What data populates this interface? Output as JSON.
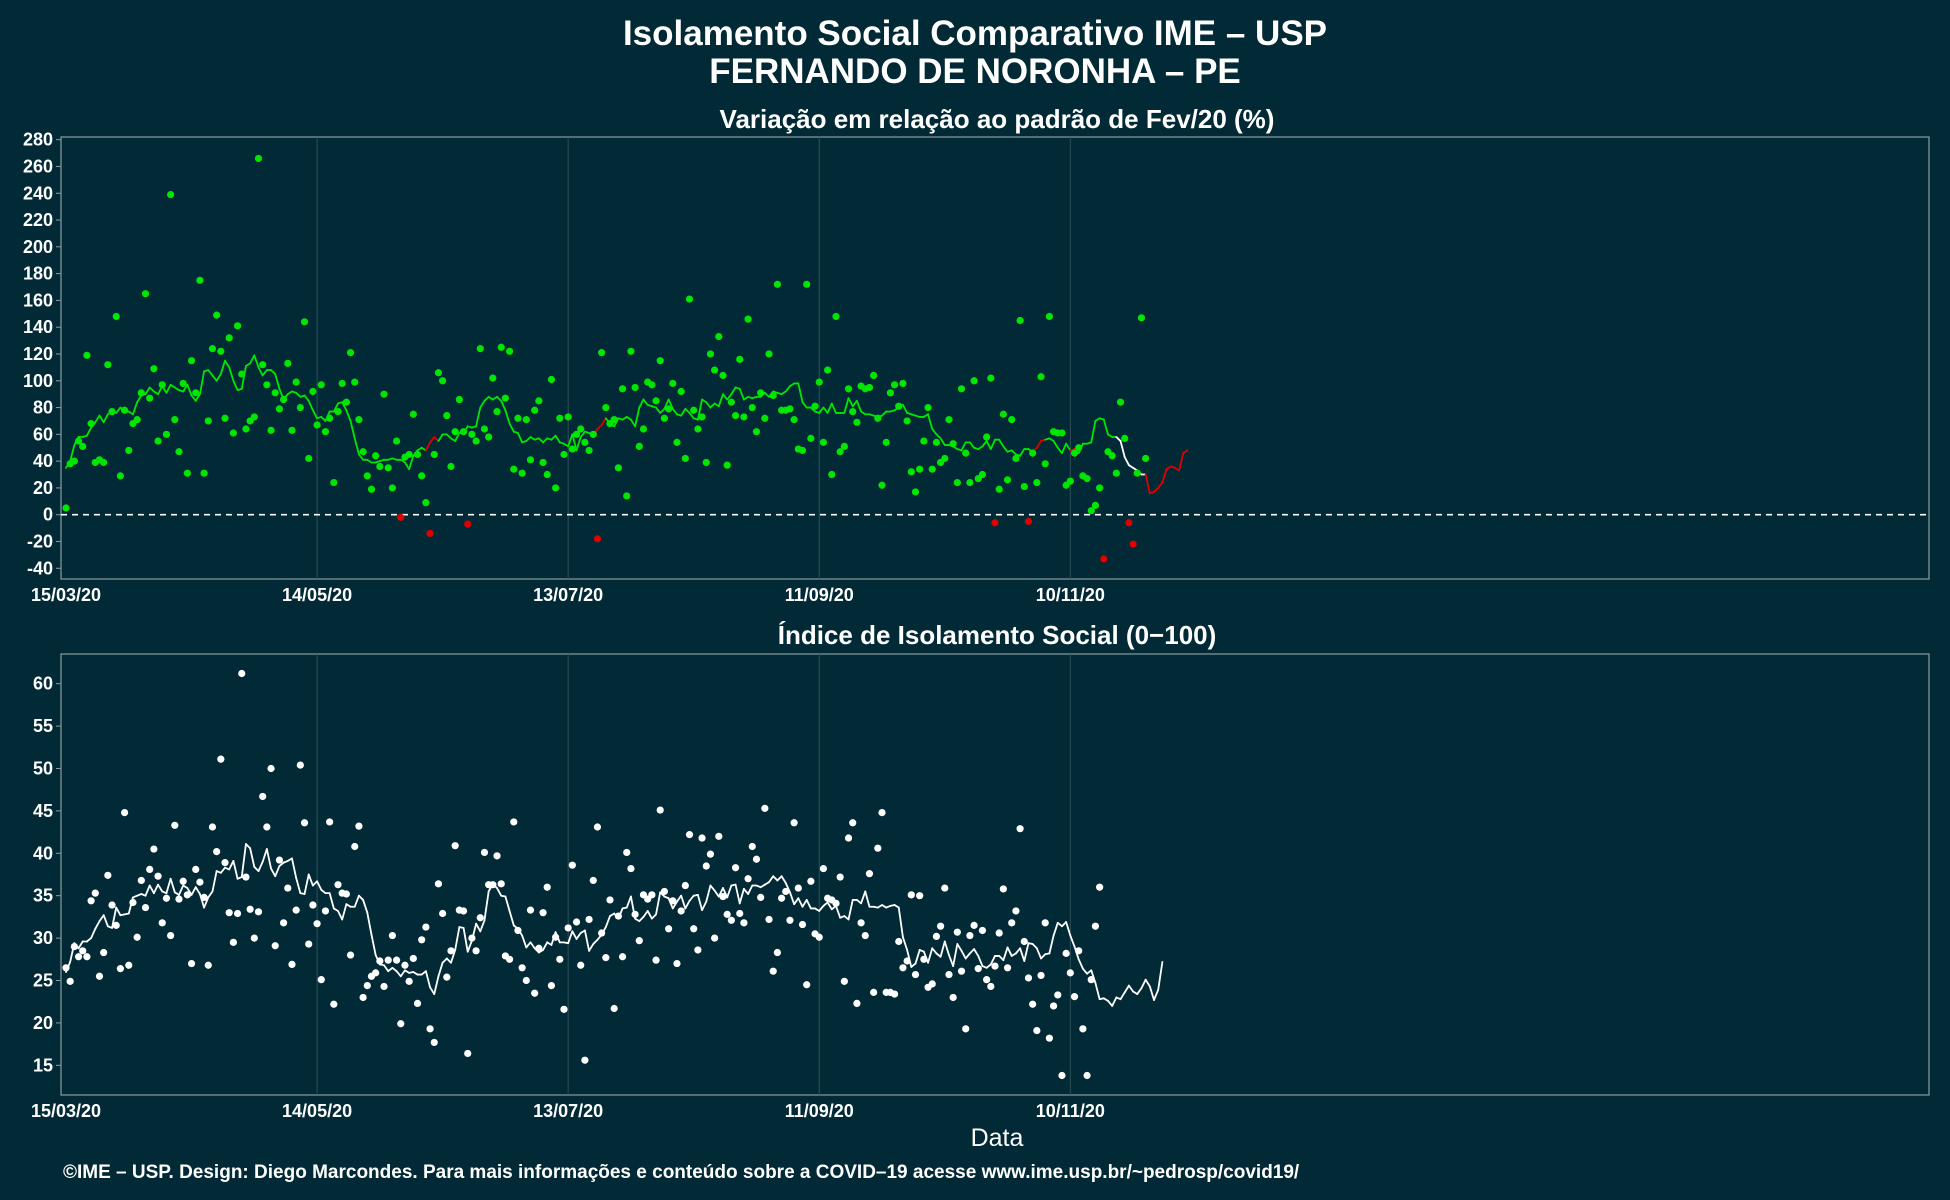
{
  "title_line1": "Isolamento Social Comparativo IME – USP",
  "title_line2": "FERNANDO DE NORONHA – PE",
  "footer": "©IME – USP. Design: Diego Marcondes. Para mais informações e conteúdo sobre a COVID–19 acesse www.ime.usp.br/~pedrosp/covid19/",
  "colors": {
    "background": "#022a36",
    "positive": "#00e600",
    "negative": "#e00000",
    "index": "#ffffff"
  },
  "chart_data": [
    {
      "type": "scatter",
      "title": "Variação em relação ao padrão de Fev/20 (%)",
      "xlabel": "",
      "ylabel": "",
      "x_start": "15/03/20",
      "x_tick_labels": [
        "15/03/20",
        "14/05/20",
        "13/07/20",
        "11/09/20",
        "10/11/20"
      ],
      "y_ticks": [
        280,
        260,
        240,
        220,
        200,
        180,
        160,
        140,
        120,
        100,
        80,
        60,
        40,
        20,
        0,
        -20,
        -40
      ],
      "ylim": [
        -48,
        282
      ],
      "reference_line": 0,
      "grid": true,
      "series": [
        {
          "type": "scatter",
          "values": [
            5,
            38,
            40,
            55,
            51,
            119,
            68,
            39,
            41,
            39,
            112,
            77,
            148,
            29,
            78,
            48,
            68,
            71,
            91,
            165,
            87,
            109,
            55,
            97,
            60,
            239,
            71,
            47,
            98,
            31,
            115,
            91,
            175,
            31,
            70,
            124,
            149,
            122,
            72,
            132,
            61,
            141,
            105,
            64,
            70,
            73,
            266,
            112,
            97,
            63,
            91,
            79,
            86,
            113,
            63,
            99,
            80,
            144,
            42,
            92,
            67,
            97,
            62,
            72,
            24,
            77,
            98,
            84,
            121,
            99,
            71,
            47,
            29,
            19,
            44,
            36,
            90,
            35,
            20,
            55,
            -2,
            43,
            45,
            75,
            45,
            29,
            9,
            -14,
            45,
            106,
            100,
            74,
            36,
            62,
            86,
            62,
            -7,
            60,
            55,
            124,
            64,
            58,
            102,
            77,
            125,
            87,
            122,
            34,
            72,
            31,
            71,
            41,
            78,
            85,
            39,
            30,
            101,
            20,
            72,
            45,
            73,
            49,
            60,
            64,
            54,
            48,
            60,
            -18,
            121,
            80,
            68,
            71,
            35,
            94,
            14,
            122,
            95,
            51,
            64,
            99,
            97,
            85,
            115,
            72,
            79,
            98,
            54,
            92,
            42,
            161,
            78,
            64,
            73,
            39,
            120,
            108,
            133,
            104,
            37,
            84,
            74,
            116,
            73,
            146,
            80,
            62,
            91,
            72,
            120,
            89,
            172,
            78,
            78,
            79,
            71,
            49,
            48,
            172,
            57,
            81,
            99,
            54,
            108,
            30,
            148,
            47,
            51,
            94,
            77,
            69,
            96,
            94,
            95,
            104,
            72,
            22,
            54,
            91,
            97,
            81,
            98,
            70,
            32,
            17,
            34,
            55,
            80,
            34,
            54,
            39,
            42,
            71,
            53,
            24,
            94,
            46,
            24,
            100,
            27,
            30,
            58,
            102,
            -6,
            19,
            75,
            26,
            71,
            42,
            145,
            21,
            -5,
            46,
            24,
            103,
            38,
            148,
            62,
            61,
            61,
            22,
            25,
            46,
            50,
            29,
            27,
            3,
            7,
            20,
            -33,
            47,
            44,
            31,
            84,
            57,
            -6,
            -22,
            31,
            147,
            42
          ]
        },
        {
          "type": "line",
          "values": [
            35,
            40,
            52,
            58,
            58,
            59,
            65,
            69,
            74,
            69,
            75,
            77,
            76,
            80,
            77,
            77,
            75,
            84,
            89,
            90,
            95,
            92,
            90,
            96,
            91,
            97,
            95,
            93,
            92,
            97,
            89,
            85,
            90,
            107,
            108,
            104,
            100,
            105,
            115,
            110,
            100,
            93,
            94,
            111,
            113,
            119,
            110,
            104,
            108,
            108,
            105,
            94,
            86,
            90,
            92,
            91,
            88,
            89,
            85,
            78,
            72,
            73,
            70,
            77,
            77,
            83,
            84,
            78,
            70,
            57,
            45,
            41,
            41,
            39,
            39,
            40,
            41,
            41,
            42,
            41,
            41,
            39,
            34,
            44,
            48,
            50,
            48,
            54,
            58,
            55,
            60,
            60,
            57,
            55,
            61,
            61,
            66,
            65,
            66,
            80,
            85,
            88,
            86,
            88,
            85,
            78,
            68,
            62,
            61,
            54,
            55,
            58,
            56,
            57,
            54,
            57,
            56,
            59,
            54,
            53,
            51,
            60,
            48,
            58,
            62,
            61,
            58,
            64,
            67,
            72,
            68,
            66,
            72,
            71,
            73,
            71,
            66,
            80,
            86,
            82,
            81,
            80,
            76,
            79,
            86,
            79,
            75,
            74,
            79,
            76,
            72,
            71,
            86,
            84,
            80,
            83,
            81,
            90,
            86,
            90,
            95,
            94,
            86,
            88,
            87,
            88,
            88,
            91,
            88,
            92,
            91,
            90,
            92,
            96,
            98,
            98,
            84,
            80,
            80,
            77,
            76,
            80,
            76,
            83,
            76,
            76,
            76,
            87,
            81,
            85,
            77,
            75,
            75,
            74,
            73,
            74,
            77,
            77,
            78,
            80,
            82,
            76,
            75,
            74,
            73,
            73,
            75,
            64,
            60,
            57,
            52,
            52,
            51,
            49,
            48,
            54,
            54,
            50,
            49,
            51,
            55,
            49,
            56,
            56,
            51,
            47,
            48,
            45,
            44,
            49,
            49,
            47,
            50,
            55,
            56,
            57,
            55,
            50,
            46,
            53,
            48,
            49,
            46,
            53,
            53,
            54,
            70,
            72,
            71,
            60,
            58,
            58,
            55,
            43,
            37,
            35,
            33,
            30,
            30,
            16,
            17,
            20,
            24,
            34,
            36,
            35,
            33,
            46,
            48
          ]
        }
      ]
    },
    {
      "type": "scatter",
      "title": "Índice de Isolamento Social (0−100)",
      "xlabel": "Data",
      "ylabel": "",
      "x_start": "15/03/20",
      "x_tick_labels": [
        "15/03/20",
        "14/05/20",
        "13/07/20",
        "11/09/20",
        "10/11/20"
      ],
      "y_ticks": [
        60,
        55,
        50,
        45,
        40,
        35,
        30,
        25,
        20,
        15
      ],
      "ylim": [
        11.5,
        63.5
      ],
      "grid": true,
      "series": [
        {
          "type": "scatter",
          "values": [
            26.5,
            24.9,
            29,
            27.8,
            28.5,
            27.8,
            34.4,
            35.3,
            25.5,
            28.3,
            37.4,
            33.9,
            31.5,
            26.4,
            44.8,
            26.8,
            34.2,
            30.1,
            36.8,
            33.6,
            38.1,
            40.5,
            37.3,
            31.8,
            34.7,
            30.3,
            43.3,
            34.6,
            36.7,
            35.1,
            27,
            38.1,
            36.6,
            34.8,
            26.8,
            43.1,
            40.2,
            51.1,
            38.9,
            33,
            29.5,
            32.9,
            61.2,
            37.2,
            33.4,
            30,
            33.1,
            46.7,
            43.1,
            50,
            29.1,
            39.2,
            31.8,
            35.9,
            26.9,
            33.3,
            50.4,
            43.6,
            29.3,
            33.9,
            31.7,
            25.1,
            33.2,
            43.7,
            22.2,
            36.3,
            35.3,
            35.2,
            28,
            40.8,
            43.2,
            23,
            24.4,
            25.5,
            25.9,
            27.3,
            24.3,
            27.4,
            30.3,
            27.4,
            19.9,
            26.8,
            24.9,
            27.6,
            22.3,
            29.8,
            31.3,
            19.3,
            17.7,
            36.4,
            32.9,
            25.4,
            28.5,
            40.9,
            33.3,
            33.2,
            16.4,
            30,
            28.5,
            32.4,
            40.1,
            36.3,
            36.3,
            39.7,
            36.4,
            27.9,
            27.5,
            43.7,
            30.9,
            26.5,
            25,
            33.3,
            23.5,
            28.8,
            33,
            36,
            24.4,
            30.1,
            27.5,
            21.6,
            31.2,
            38.6,
            31.9,
            26.8,
            15.6,
            32.2,
            36.8,
            43.1,
            30.6,
            27.7,
            34.5,
            21.7,
            32.6,
            27.8,
            40.1,
            38.2,
            32.8,
            29.7,
            35.1,
            34.6,
            35.1,
            27.4,
            45.1,
            35.5,
            31.1,
            34.4,
            27,
            33.2,
            36.2,
            42.2,
            31.1,
            28.6,
            41.8,
            38.5,
            39.9,
            30,
            42,
            34.9,
            32.8,
            32.1,
            38.3,
            32.9,
            31.8,
            37,
            40.8,
            39.3,
            34.8,
            45.3,
            32.2,
            26.1,
            28.3,
            34.7,
            35.5,
            32.1,
            43.6,
            35.9,
            31.6,
            24.5,
            36.7,
            30.5,
            30.1,
            38.2,
            34.7,
            34.5,
            34.1,
            37.2,
            24.9,
            41.8,
            43.6,
            22.3,
            31.8,
            30.3,
            37.6,
            23.6,
            40.6,
            44.8,
            23.6,
            23.6,
            23.4,
            29.6,
            26.5,
            27.3,
            35.1,
            25.7,
            35,
            27.5,
            24.2,
            24.6,
            30.2,
            31.4,
            35.9,
            25.7,
            23,
            30.7,
            26.1,
            19.3,
            30.3,
            31.5,
            26.4,
            30.9,
            25.1,
            24.3,
            26.7,
            30.6,
            35.8,
            26.5,
            31.8,
            33.2,
            42.9,
            29.6,
            25.3,
            22.2,
            19.1,
            25.6,
            31.8,
            18.2,
            22,
            23.3,
            13.8,
            28.2,
            25.9,
            23.1,
            28.5,
            19.3,
            13.8,
            25.1,
            31.4,
            36
          ]
        },
        {
          "type": "line",
          "values": [
            26,
            27.2,
            29.4,
            28.8,
            29.6,
            29.6,
            30,
            31.1,
            32,
            32.7,
            31.4,
            31.2,
            33.6,
            32.7,
            32.8,
            32.9,
            34.8,
            35,
            35.2,
            35,
            36.2,
            35.3,
            36.3,
            35.5,
            35.3,
            37,
            35.4,
            35.1,
            36.2,
            35.9,
            35.1,
            36,
            35.2,
            33.6,
            34.8,
            35.5,
            37.9,
            37.7,
            38.3,
            38.1,
            39.1,
            37,
            37.2,
            41.1,
            40.6,
            38.4,
            37.9,
            39,
            40.5,
            38.2,
            37.3,
            38.5,
            38.9,
            39.1,
            39.4,
            37.1,
            35.3,
            35.2,
            37.5,
            36.2,
            36.7,
            35.7,
            35.3,
            35.3,
            33.5,
            33.2,
            32.2,
            34,
            33.7,
            33.7,
            35,
            34.5,
            33,
            30.4,
            28,
            26.9,
            26.8,
            26.1,
            26.5,
            26.1,
            25.5,
            26.2,
            25.9,
            26,
            25.7,
            25.7,
            26.1,
            24.2,
            23.4,
            25.5,
            27.1,
            27.6,
            27.1,
            28.6,
            31.3,
            31.2,
            28.4,
            29.7,
            31.7,
            30.8,
            32.1,
            35.5,
            36.4,
            35.9,
            35,
            34.9,
            33.2,
            31.5,
            31.1,
            30.3,
            28.9,
            29.5,
            28.8,
            28.3,
            28.6,
            29.5,
            29.2,
            30.7,
            29.5,
            29.5,
            29.4,
            30.8,
            29.9,
            30.6,
            30.9,
            28.5,
            29.3,
            29.8,
            30.4,
            31.3,
            32.6,
            32.9,
            32.3,
            33.5,
            33.6,
            34.9,
            32.3,
            32,
            32.5,
            33.2,
            32.3,
            32.8,
            35.4,
            34.9,
            34.7,
            33.5,
            34.3,
            35,
            33.5,
            34.4,
            35,
            35.1,
            33.3,
            34.3,
            36.2,
            35.6,
            34.9,
            35.9,
            34.8,
            36.2,
            36.3,
            34.1,
            35.8,
            35.2,
            36.2,
            36.2,
            36,
            36.3,
            36.6,
            37.3,
            36.8,
            37.3,
            36.5,
            35.4,
            34,
            34.7,
            33.7,
            34.5,
            33.5,
            33.5,
            33.2,
            33.8,
            34.2,
            33.4,
            33.8,
            32.4,
            32.6,
            32.2,
            34.5,
            34.5,
            34.1,
            35.5,
            33.7,
            33.7,
            33.6,
            33.9,
            33.6,
            33.8,
            33.9,
            33.6,
            30.1,
            28.6,
            26.6,
            27,
            28.6,
            28.4,
            27.1,
            28.8,
            28.2,
            27.8,
            29.6,
            28,
            26.7,
            29.3,
            28.5,
            27.6,
            28.2,
            28.7,
            27.9,
            26.7,
            26.5,
            26.9,
            27.9,
            27.9,
            27.4,
            28.9,
            27.9,
            28.2,
            28.8,
            27.3,
            29.4,
            29.3,
            28.8,
            27.6,
            28.1,
            28.2,
            30.3,
            31.8,
            31.4,
            31.9,
            30.3,
            29,
            27.5,
            26.4,
            25.8,
            26.2,
            24.7,
            22.8,
            22.9,
            22.6,
            22,
            23,
            22.8,
            23.6,
            24.4,
            23.7,
            23.4,
            24.1,
            25.1,
            24.3,
            22.7,
            23.9,
            27.2
          ]
        }
      ]
    }
  ]
}
